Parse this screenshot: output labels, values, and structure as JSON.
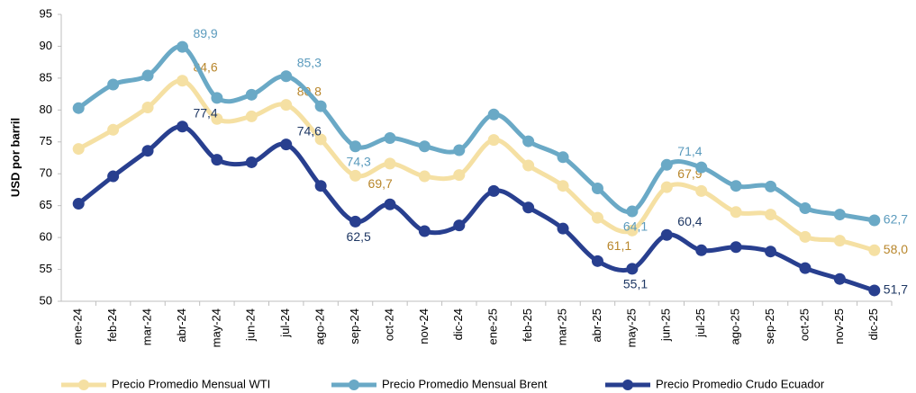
{
  "chart_data": {
    "type": "line",
    "y_label": "USD por barril",
    "categories": [
      "ene-24",
      "feb-24",
      "mar-24",
      "abr-24",
      "may-24",
      "jun-24",
      "jul-24",
      "ago-24",
      "sep-24",
      "oct-24",
      "nov-24",
      "dic-24",
      "ene-25",
      "feb-25",
      "mar-25",
      "abr-25",
      "may-25",
      "jun-25",
      "jul-25",
      "ago-25",
      "sep-25",
      "oct-25",
      "nov-25",
      "dic-25"
    ],
    "series": [
      {
        "name": "Precio Promedio Mensual WTI",
        "color": "#f5e0a3",
        "label_color": "#b8862b",
        "values": [
          73.9,
          76.9,
          80.4,
          84.6,
          78.6,
          79.0,
          80.8,
          75.4,
          69.7,
          71.6,
          69.6,
          69.8,
          75.3,
          71.3,
          68.1,
          63.1,
          61.1,
          67.9,
          67.3,
          64.0,
          63.6,
          60.1,
          59.5,
          58.0
        ],
        "value_labels": [
          null,
          null,
          null,
          "84,6",
          null,
          null,
          "80,8",
          null,
          "69,7",
          null,
          null,
          null,
          null,
          null,
          null,
          null,
          "61,1",
          "67,9",
          null,
          null,
          null,
          null,
          null,
          "58,0"
        ]
      },
      {
        "name": "Precio Promedio Mensual Brent",
        "color": "#6aa9c6",
        "label_color": "#5b9bbd",
        "values": [
          80.3,
          84.0,
          85.4,
          89.9,
          81.9,
          82.4,
          85.3,
          80.6,
          74.3,
          75.6,
          74.3,
          73.7,
          79.3,
          75.1,
          72.6,
          67.7,
          64.1,
          71.4,
          71.0,
          68.1,
          68.0,
          64.6,
          63.6,
          62.7
        ],
        "value_labels": [
          null,
          null,
          null,
          "89,9",
          null,
          null,
          "85,3",
          null,
          "74,3",
          null,
          null,
          null,
          null,
          null,
          null,
          null,
          "64,1",
          "71,4",
          null,
          null,
          null,
          null,
          null,
          "62,7"
        ]
      },
      {
        "name": "Precio Promedio Crudo Ecuador",
        "color": "#283f8f",
        "label_color": "#1f3864",
        "values": [
          65.3,
          69.6,
          73.6,
          77.4,
          72.2,
          71.8,
          74.6,
          68.1,
          62.5,
          65.2,
          61.0,
          61.9,
          67.3,
          64.7,
          61.4,
          56.3,
          55.1,
          60.4,
          58.0,
          58.5,
          57.8,
          55.2,
          53.5,
          51.7
        ],
        "value_labels": [
          null,
          null,
          null,
          "77,4",
          null,
          null,
          "74,6",
          null,
          "62,5",
          null,
          null,
          null,
          null,
          null,
          null,
          null,
          "55,1",
          "60,4",
          null,
          null,
          null,
          null,
          null,
          "51,7"
        ]
      }
    ],
    "ylim": [
      50,
      95
    ],
    "yticks": [
      50,
      55,
      60,
      65,
      70,
      75,
      80,
      85,
      90,
      95
    ],
    "grid": false
  }
}
